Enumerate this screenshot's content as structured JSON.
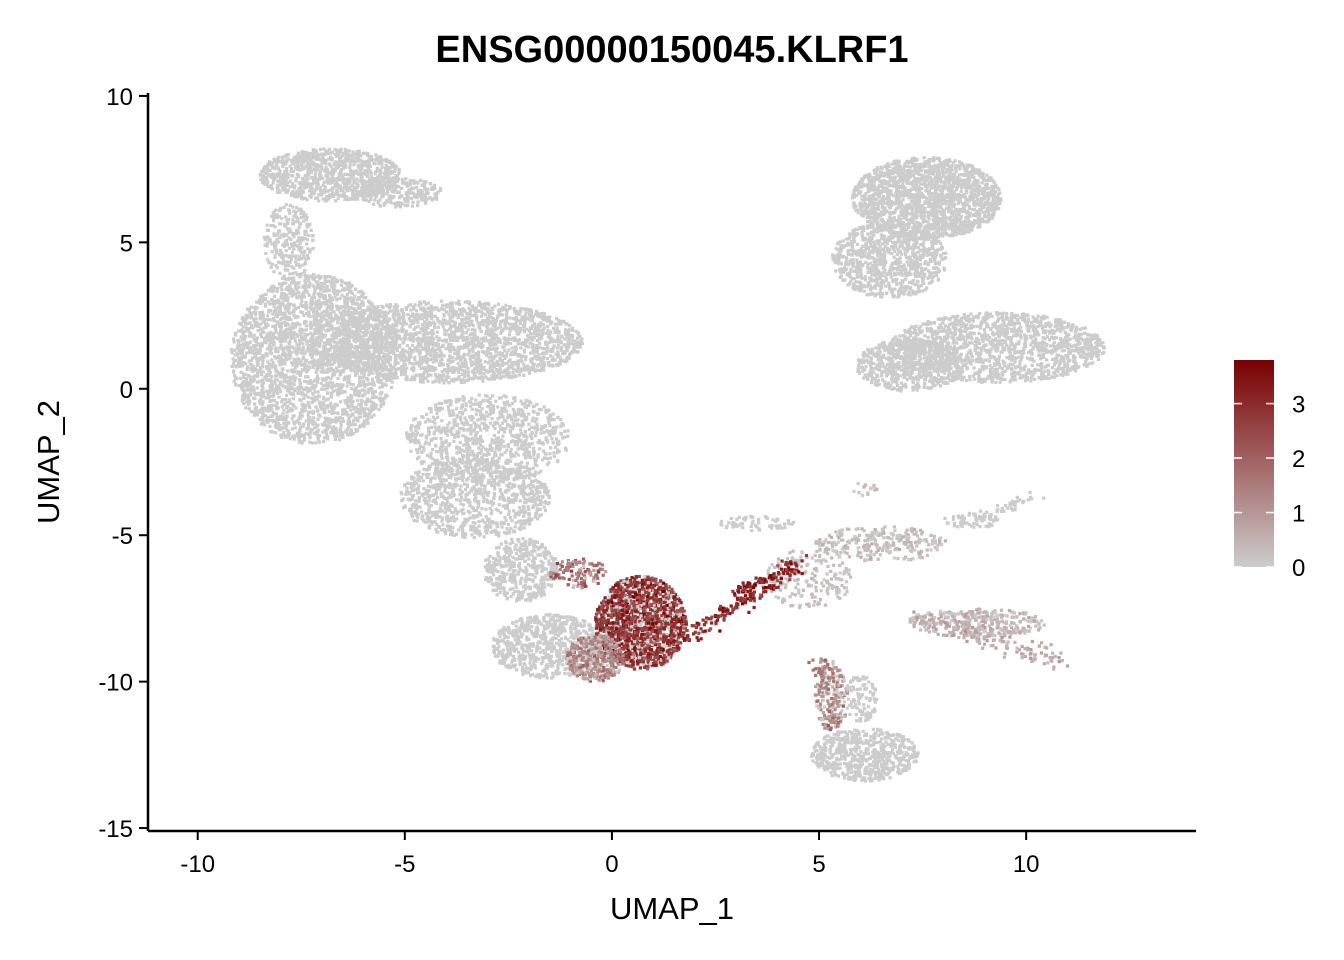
{
  "chart_data": {
    "type": "scatter",
    "title": "ENSG00000150045.KLRF1",
    "xlabel": "UMAP_1",
    "ylabel": "UMAP_2",
    "xlim": [
      -11.2,
      14.1
    ],
    "ylim": [
      -15.1,
      10.1
    ],
    "x_ticks": [
      -10,
      -5,
      0,
      5,
      10
    ],
    "x_tick_labels": [
      "-10",
      "-5",
      "0",
      "5",
      "10"
    ],
    "y_ticks": [
      -15,
      -10,
      -5,
      0,
      5,
      10
    ],
    "y_tick_labels": [
      "-15",
      "-10",
      "-5",
      "0",
      "5",
      "10"
    ],
    "grid": false,
    "legend": {
      "placement": "right",
      "type": "colorbar",
      "min": 0,
      "max": 3.8,
      "ticks": [
        0,
        1,
        2,
        3
      ],
      "tick_labels": [
        "0",
        "1",
        "2",
        "3"
      ],
      "colors": [
        "#cccccc",
        "#7a0000"
      ]
    },
    "colors": {
      "low": "#cccccc",
      "high": "#7a0000"
    },
    "regions": [
      {
        "cx": -6.8,
        "cy": 7.3,
        "rx": 1.7,
        "ry": 0.9,
        "n": 900,
        "level": 0
      },
      {
        "cx": -5.2,
        "cy": 6.7,
        "rx": 1.1,
        "ry": 0.5,
        "n": 260,
        "level": 0
      },
      {
        "cx": -7.8,
        "cy": 5.0,
        "rx": 0.6,
        "ry": 1.3,
        "n": 250,
        "level": 0
      },
      {
        "cx": -7.2,
        "cy": 1.0,
        "rx": 2.0,
        "ry": 2.9,
        "n": 2600,
        "level": 0
      },
      {
        "cx": -4.0,
        "cy": 1.6,
        "rx": 3.3,
        "ry": 1.4,
        "n": 2200,
        "level": 0
      },
      {
        "cx": -3.0,
        "cy": -1.7,
        "rx": 2.0,
        "ry": 1.5,
        "n": 900,
        "level": 0
      },
      {
        "cx": -3.3,
        "cy": -3.7,
        "rx": 1.8,
        "ry": 1.4,
        "n": 900,
        "level": 0
      },
      {
        "cx": -2.2,
        "cy": -6.2,
        "rx": 0.9,
        "ry": 1.1,
        "n": 420,
        "level": 0
      },
      {
        "cx": -1.5,
        "cy": -8.8,
        "rx": 1.4,
        "ry": 1.1,
        "n": 700,
        "level": 0
      },
      {
        "cx": 0.7,
        "cy": -8.0,
        "rx": 1.1,
        "ry": 1.6,
        "n": 1400,
        "level": 2.8
      },
      {
        "cx": -0.4,
        "cy": -9.2,
        "rx": 0.7,
        "ry": 0.8,
        "n": 420,
        "level": 1.3
      },
      {
        "cx": -0.8,
        "cy": -6.3,
        "rx": 0.7,
        "ry": 0.5,
        "n": 120,
        "level": 1.6
      },
      {
        "cx": 7.6,
        "cy": 6.5,
        "rx": 1.8,
        "ry": 1.4,
        "n": 1800,
        "level": 0
      },
      {
        "cx": 6.7,
        "cy": 4.4,
        "rx": 1.4,
        "ry": 1.3,
        "n": 900,
        "level": 0
      },
      {
        "cx": 9.3,
        "cy": 1.4,
        "rx": 2.6,
        "ry": 1.2,
        "n": 1500,
        "level": 0
      },
      {
        "cx": 7.2,
        "cy": 0.8,
        "rx": 1.3,
        "ry": 0.9,
        "n": 600,
        "level": 0
      },
      {
        "cx": 6.1,
        "cy": -12.5,
        "rx": 1.3,
        "ry": 0.9,
        "n": 650,
        "level": 0
      },
      {
        "cx": 5.3,
        "cy": -10.5,
        "rx": 0.4,
        "ry": 1.2,
        "n": 150,
        "level": 0.9
      },
      {
        "cx": 6.0,
        "cy": -10.6,
        "rx": 0.4,
        "ry": 0.8,
        "n": 100,
        "level": 0
      },
      {
        "cx": 8.8,
        "cy": -8.0,
        "rx": 1.7,
        "ry": 0.5,
        "n": 300,
        "level": 0.4
      },
      {
        "cx": 6.5,
        "cy": -5.3,
        "rx": 1.6,
        "ry": 0.6,
        "n": 260,
        "level": 0.3
      },
      {
        "cx": 4.7,
        "cy": -6.5,
        "rx": 1.1,
        "ry": 1.0,
        "n": 180,
        "level": 0.2
      },
      {
        "cx": 3.5,
        "cy": -4.6,
        "rx": 0.9,
        "ry": 0.25,
        "n": 60,
        "level": 0
      },
      {
        "cx": 8.7,
        "cy": -4.5,
        "rx": 0.7,
        "ry": 0.25,
        "n": 60,
        "level": 0
      },
      {
        "cx": 6.1,
        "cy": -3.4,
        "rx": 0.3,
        "ry": 0.25,
        "n": 15,
        "level": 0.3
      }
    ],
    "paths": [
      {
        "from": [
          1.7,
          -8.6
        ],
        "to": [
          4.5,
          -6.0
        ],
        "n": 150,
        "spread": 0.15,
        "level": 3.0
      },
      {
        "from": [
          3.0,
          -6.9
        ],
        "to": [
          4.4,
          -6.1
        ],
        "n": 70,
        "spread": 0.08,
        "level": 3.2
      },
      {
        "from": [
          7.5,
          -7.8
        ],
        "to": [
          11.0,
          -9.4
        ],
        "n": 140,
        "spread": 0.18,
        "level": 0.6
      },
      {
        "from": [
          5.0,
          -9.3
        ],
        "to": [
          5.4,
          -11.5
        ],
        "n": 80,
        "spread": 0.12,
        "level": 1.4
      },
      {
        "from": [
          9.0,
          -4.4
        ],
        "to": [
          10.2,
          -3.7
        ],
        "n": 40,
        "spread": 0.1,
        "level": 0
      }
    ]
  }
}
